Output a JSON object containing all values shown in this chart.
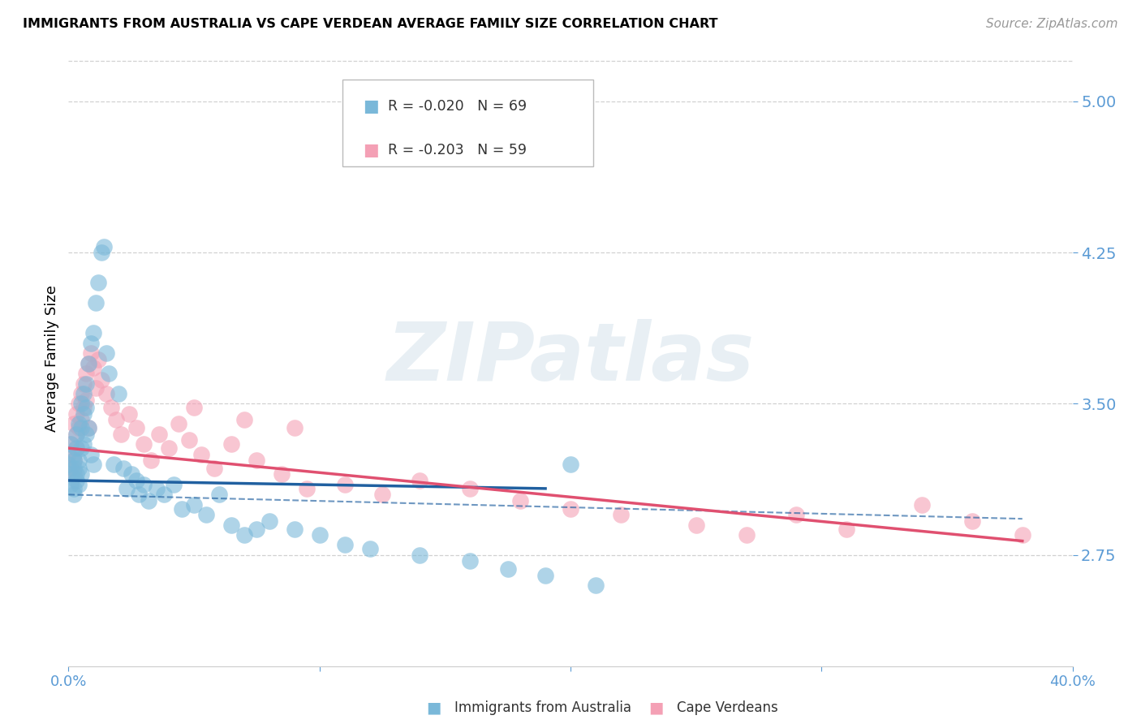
{
  "title": "IMMIGRANTS FROM AUSTRALIA VS CAPE VERDEAN AVERAGE FAMILY SIZE CORRELATION CHART",
  "source": "Source: ZipAtlas.com",
  "ylabel": "Average Family Size",
  "yticks": [
    2.75,
    3.5,
    4.25,
    5.0
  ],
  "ymin": 2.2,
  "ymax": 5.25,
  "xmin": 0.0,
  "xmax": 0.4,
  "australia_color": "#7ab8d9",
  "capeverde_color": "#f4a0b5",
  "australia_line_color": "#2060a0",
  "capeverde_line_color": "#e05070",
  "australia_R": "-0.020",
  "australia_N": "69",
  "capeverde_R": "-0.203",
  "capeverde_N": "59",
  "watermark": "ZIPatlas",
  "background_color": "#ffffff",
  "grid_color": "#cccccc",
  "axis_color": "#5b9bd5",
  "australia_points_x": [
    0.0,
    0.001,
    0.001,
    0.001,
    0.002,
    0.002,
    0.002,
    0.002,
    0.002,
    0.003,
    0.003,
    0.003,
    0.003,
    0.004,
    0.004,
    0.004,
    0.004,
    0.005,
    0.005,
    0.005,
    0.005,
    0.006,
    0.006,
    0.006,
    0.007,
    0.007,
    0.007,
    0.008,
    0.008,
    0.009,
    0.009,
    0.01,
    0.01,
    0.011,
    0.012,
    0.013,
    0.014,
    0.015,
    0.016,
    0.018,
    0.02,
    0.022,
    0.023,
    0.025,
    0.027,
    0.028,
    0.03,
    0.032,
    0.035,
    0.038,
    0.042,
    0.045,
    0.05,
    0.055,
    0.06,
    0.065,
    0.07,
    0.075,
    0.08,
    0.09,
    0.1,
    0.11,
    0.12,
    0.14,
    0.16,
    0.175,
    0.19,
    0.2,
    0.21
  ],
  "australia_points_y": [
    3.2,
    3.1,
    3.3,
    3.15,
    3.22,
    3.08,
    3.18,
    3.05,
    3.25,
    3.15,
    3.28,
    3.12,
    3.35,
    3.4,
    3.22,
    3.18,
    3.1,
    3.5,
    3.38,
    3.28,
    3.15,
    3.55,
    3.45,
    3.3,
    3.6,
    3.48,
    3.35,
    3.7,
    3.38,
    3.8,
    3.25,
    3.85,
    3.2,
    4.0,
    4.1,
    4.25,
    4.28,
    3.75,
    3.65,
    3.2,
    3.55,
    3.18,
    3.08,
    3.15,
    3.12,
    3.05,
    3.1,
    3.02,
    3.08,
    3.05,
    3.1,
    2.98,
    3.0,
    2.95,
    3.05,
    2.9,
    2.85,
    2.88,
    2.92,
    2.88,
    2.85,
    2.8,
    2.78,
    2.75,
    2.72,
    2.68,
    2.65,
    3.2,
    2.6
  ],
  "capeverde_points_x": [
    0.0,
    0.001,
    0.001,
    0.002,
    0.002,
    0.002,
    0.003,
    0.003,
    0.003,
    0.004,
    0.004,
    0.005,
    0.005,
    0.006,
    0.006,
    0.007,
    0.007,
    0.008,
    0.008,
    0.009,
    0.01,
    0.011,
    0.012,
    0.013,
    0.015,
    0.017,
    0.019,
    0.021,
    0.024,
    0.027,
    0.03,
    0.033,
    0.036,
    0.04,
    0.044,
    0.048,
    0.053,
    0.058,
    0.065,
    0.075,
    0.085,
    0.095,
    0.11,
    0.125,
    0.14,
    0.16,
    0.18,
    0.2,
    0.22,
    0.25,
    0.27,
    0.29,
    0.31,
    0.34,
    0.36,
    0.38,
    0.05,
    0.07,
    0.09
  ],
  "capeverde_points_y": [
    3.25,
    3.3,
    3.18,
    3.4,
    3.22,
    3.15,
    3.45,
    3.35,
    3.28,
    3.5,
    3.38,
    3.55,
    3.42,
    3.6,
    3.48,
    3.65,
    3.52,
    3.7,
    3.38,
    3.75,
    3.68,
    3.58,
    3.72,
    3.62,
    3.55,
    3.48,
    3.42,
    3.35,
    3.45,
    3.38,
    3.3,
    3.22,
    3.35,
    3.28,
    3.4,
    3.32,
    3.25,
    3.18,
    3.3,
    3.22,
    3.15,
    3.08,
    3.1,
    3.05,
    3.12,
    3.08,
    3.02,
    2.98,
    2.95,
    2.9,
    2.85,
    2.95,
    2.88,
    3.0,
    2.92,
    2.85,
    3.48,
    3.42,
    3.38
  ],
  "aus_line_x0": 0.0,
  "aus_line_x1": 0.19,
  "aus_line_y0": 3.12,
  "aus_line_y1": 3.08,
  "cv_line_x0": 0.0,
  "cv_line_x1": 0.38,
  "cv_line_y0": 3.28,
  "cv_line_y1": 2.82,
  "dash_line_x0": 0.0,
  "dash_line_x1": 0.38,
  "dash_line_y": 3.05
}
